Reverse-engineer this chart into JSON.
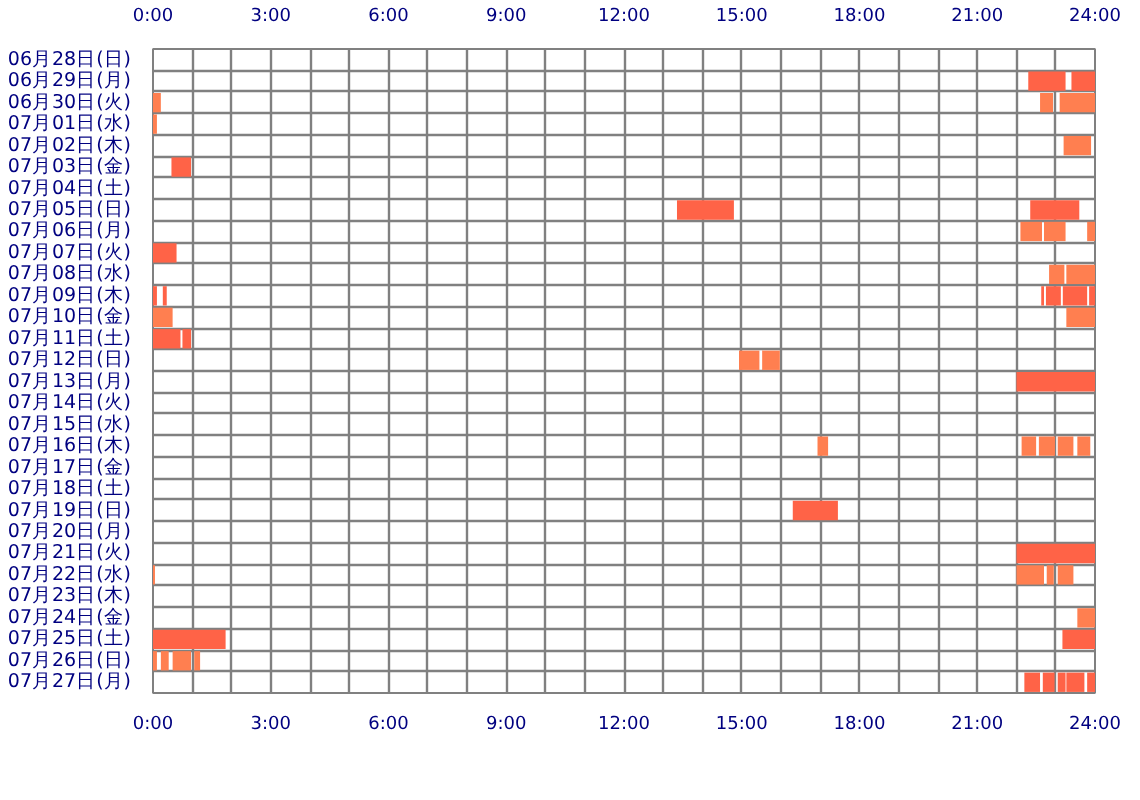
{
  "chart_data": {
    "type": "bar",
    "orientation": "horizontal",
    "categories": [
      "06月28日(日)",
      "06月29日(月)",
      "06月30日(火)",
      "07月01日(水)",
      "07月02日(木)",
      "07月03日(金)",
      "07月04日(土)",
      "07月05日(日)",
      "07月06日(月)",
      "07月07日(火)",
      "07月08日(水)",
      "07月09日(木)",
      "07月10日(金)",
      "07月11日(土)",
      "07月12日(日)",
      "07月13日(月)",
      "07月14日(火)",
      "07月15日(水)",
      "07月16日(木)",
      "07月17日(金)",
      "07月18日(土)",
      "07月19日(日)",
      "07月20日(月)",
      "07月21日(火)",
      "07月22日(水)",
      "07月23日(木)",
      "07月24日(金)",
      "07月25日(土)",
      "07月26日(日)",
      "07月27日(月)"
    ],
    "series": [
      {
        "colors": [
          null,
          "#ff6347",
          "#ff7f50",
          "#ff7f50",
          "#ff7f50",
          "#ff6347",
          null,
          "#ff6347",
          "#ff7f50",
          "#ff6347",
          "#ff7f50",
          "#ff6347",
          "#ff7f50",
          "#ff6347",
          "#ff7f50",
          "#ff6347",
          null,
          null,
          "#ff7f50",
          null,
          null,
          "#ff6347",
          null,
          "#ff6347",
          "#ff7f50",
          null,
          "#ff7f50",
          "#ff6347",
          "#ff7f50",
          "#ff6347"
        ],
        "base": [
          null,
          22.3,
          0,
          0,
          23.2,
          0.47,
          null,
          13.35,
          22.1,
          0,
          22.83,
          0,
          0,
          0,
          14.93,
          22,
          null,
          null,
          16.93,
          null,
          null,
          16.3,
          null,
          22,
          0,
          null,
          23.55,
          0,
          0,
          22.2
        ],
        "values": [
          null,
          0.95,
          0.2,
          0.1,
          0.7,
          0.5,
          null,
          1.45,
          0.55,
          0.6,
          0.39,
          0.1,
          0.5,
          0.7,
          0.52,
          2,
          null,
          null,
          0.27,
          null,
          null,
          1.15,
          null,
          2,
          0.05,
          null,
          0.45,
          1.85,
          0.1,
          0.4
        ]
      },
      {
        "colors": [
          null,
          "#ff6347",
          "#ff7f50",
          null,
          null,
          null,
          null,
          "#ff6347",
          "#ff7f50",
          null,
          "#ff7f50",
          "#ff6347",
          "#ff7f50",
          "#ff6347",
          "#ff7f50",
          null,
          null,
          null,
          "#ff7f50",
          null,
          null,
          null,
          null,
          null,
          "#ff7f50",
          null,
          null,
          "#ff6347",
          "#ff7f50",
          "#ff6347"
        ],
        "base": [
          null,
          23.4,
          22.6,
          null,
          null,
          null,
          null,
          22.35,
          22.7,
          null,
          23.27,
          0.25,
          23.27,
          0.75,
          15.52,
          null,
          null,
          null,
          22.13,
          null,
          null,
          null,
          null,
          null,
          22,
          null,
          null,
          23.17,
          0.2,
          22.67
        ],
        "values": [
          null,
          0.6,
          0.33,
          null,
          null,
          null,
          null,
          1.25,
          0.55,
          null,
          0.73,
          0.1,
          0.73,
          0.22,
          0.45,
          null,
          null,
          null,
          0.37,
          null,
          null,
          null,
          null,
          null,
          0.7,
          null,
          null,
          0.83,
          0.2,
          0.3
        ]
      },
      {
        "colors": [
          null,
          null,
          "#ff7f50",
          null,
          null,
          null,
          null,
          null,
          "#ff7f50",
          null,
          null,
          "#ff6347",
          null,
          null,
          null,
          null,
          null,
          null,
          "#ff7f50",
          null,
          null,
          null,
          null,
          null,
          "#ff7f50",
          null,
          null,
          null,
          "#ff7f50",
          "#ff6347"
        ],
        "base": [
          null,
          null,
          23.1,
          null,
          null,
          null,
          null,
          null,
          23.8,
          null,
          null,
          22.63,
          null,
          null,
          null,
          null,
          null,
          null,
          22.57,
          null,
          null,
          null,
          null,
          null,
          22.77,
          null,
          null,
          null,
          0.5,
          23.05
        ],
        "values": [
          null,
          null,
          0.9,
          null,
          null,
          null,
          null,
          null,
          0.2,
          null,
          null,
          0.07,
          null,
          null,
          null,
          null,
          null,
          null,
          0.41,
          null,
          null,
          null,
          null,
          null,
          0.18,
          null,
          null,
          null,
          0.47,
          0.2
        ]
      },
      {
        "colors": [
          null,
          null,
          null,
          null,
          null,
          null,
          null,
          null,
          null,
          null,
          null,
          "#ff6347",
          null,
          null,
          null,
          null,
          null,
          null,
          "#ff7f50",
          null,
          null,
          null,
          null,
          null,
          "#ff7f50",
          null,
          null,
          null,
          "#ff7f50",
          "#ff6347"
        ],
        "base": [
          null,
          null,
          null,
          null,
          null,
          null,
          null,
          null,
          null,
          null,
          null,
          22.75,
          null,
          null,
          null,
          null,
          null,
          null,
          23.05,
          null,
          null,
          null,
          null,
          null,
          23.05,
          null,
          null,
          null,
          1.05,
          23.27
        ],
        "values": [
          null,
          null,
          null,
          null,
          null,
          null,
          null,
          null,
          null,
          null,
          null,
          0.38,
          null,
          null,
          null,
          null,
          null,
          null,
          0.4,
          null,
          null,
          null,
          null,
          null,
          0.4,
          null,
          null,
          null,
          0.15,
          0.46
        ]
      },
      {
        "colors": [
          null,
          null,
          null,
          null,
          null,
          null,
          null,
          null,
          null,
          null,
          null,
          "#ff6347",
          null,
          null,
          null,
          null,
          null,
          null,
          "#ff7f50",
          null,
          null,
          null,
          null,
          null,
          null,
          null,
          null,
          null,
          null,
          "#ff6347"
        ],
        "base": [
          null,
          null,
          null,
          null,
          null,
          null,
          null,
          null,
          null,
          null,
          null,
          23.18,
          null,
          null,
          null,
          null,
          null,
          null,
          23.55,
          null,
          null,
          null,
          null,
          null,
          null,
          null,
          null,
          null,
          null,
          23.8
        ],
        "values": [
          null,
          null,
          null,
          null,
          null,
          null,
          null,
          null,
          null,
          null,
          null,
          0.62,
          null,
          null,
          null,
          null,
          null,
          null,
          0.33,
          null,
          null,
          null,
          null,
          null,
          null,
          null,
          null,
          null,
          null,
          0.2
        ]
      },
      {
        "color": "#ff6347",
        "base": [
          null,
          null,
          null,
          null,
          null,
          null,
          null,
          null,
          null,
          null,
          null,
          23.85,
          null,
          null,
          null,
          null,
          null,
          null,
          null,
          null,
          null,
          null,
          null,
          null,
          null,
          null,
          null,
          null,
          null,
          null
        ],
        "values": [
          null,
          null,
          null,
          null,
          null,
          null,
          null,
          null,
          null,
          null,
          null,
          0.15,
          null,
          null,
          null,
          null,
          null,
          null,
          null,
          null,
          null,
          null,
          null,
          null,
          null,
          null,
          null,
          null,
          null,
          null
        ]
      }
    ],
    "xlim": [
      0,
      24
    ],
    "xticks": [
      {
        "value": 0,
        "label": "0:00"
      },
      {
        "value": 1,
        "label": null
      },
      {
        "value": 2,
        "label": null
      },
      {
        "value": 3,
        "label": "3:00"
      },
      {
        "value": 4,
        "label": null
      },
      {
        "value": 5,
        "label": null
      },
      {
        "value": 6,
        "label": "6:00"
      },
      {
        "value": 7,
        "label": null
      },
      {
        "value": 8,
        "label": null
      },
      {
        "value": 9,
        "label": "9:00"
      },
      {
        "value": 10,
        "label": null
      },
      {
        "value": 11,
        "label": null
      },
      {
        "value": 12,
        "label": "12:00"
      },
      {
        "value": 13,
        "label": null
      },
      {
        "value": 14,
        "label": null
      },
      {
        "value": 15,
        "label": "15:00"
      },
      {
        "value": 16,
        "label": null
      },
      {
        "value": 17,
        "label": null
      },
      {
        "value": 18,
        "label": "18:00"
      },
      {
        "value": 19,
        "label": null
      },
      {
        "value": 20,
        "label": null
      },
      {
        "value": 21,
        "label": "21:00"
      },
      {
        "value": 22,
        "label": null
      },
      {
        "value": 23,
        "label": null
      },
      {
        "value": 24,
        "label": "24:00"
      }
    ],
    "x2lim": [
      0,
      24
    ],
    "x2ticks": [
      {
        "value": 0,
        "label": "0:00"
      },
      {
        "value": 3,
        "label": "3:00"
      },
      {
        "value": 6,
        "label": "6:00"
      },
      {
        "value": 9,
        "label": "9:00"
      },
      {
        "value": 12,
        "label": "12:00"
      },
      {
        "value": 15,
        "label": "15:00"
      },
      {
        "value": 18,
        "label": "18:00"
      },
      {
        "value": 21,
        "label": "21:00"
      },
      {
        "value": 24,
        "label": "24:00"
      }
    ],
    "grid": true
  }
}
